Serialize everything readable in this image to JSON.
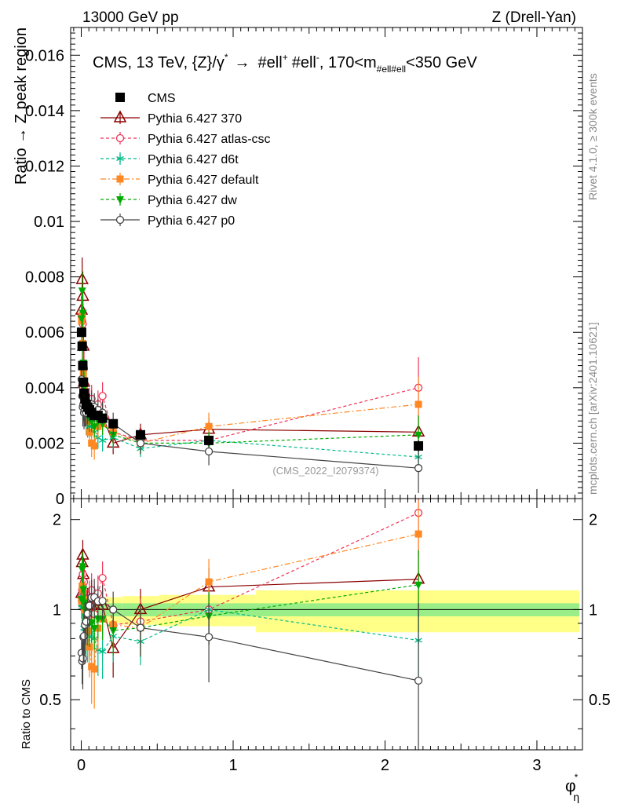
{
  "header": {
    "left_label": "13000 GeV pp",
    "right_label": "Z (Drell-Yan)"
  },
  "side_text": {
    "rivet": "Rivet 4.1.0, ≥ 300k events",
    "mcplots": "mcplots.cern.ch [arXiv:2401.10621]"
  },
  "chart_data": {
    "type": "scatter",
    "title": "CMS, 13 TeV, {Z}/γ* → #ell+ #ell-, 170<m#ell#ell<350 GeV",
    "title_parts": {
      "pre": "CMS, 13 TeV, {Z}/",
      "gamma": "γ",
      "star": "*",
      "arrow": "→",
      "ellp": "#ell",
      "plus": "+",
      "ellm": "#ell",
      "minus": "-",
      "mid": ", 170<m",
      "sub": "#ell#ell",
      "end": "<350 GeV"
    },
    "xlabel": "φ",
    "xlabel_sup": "*",
    "xlabel_sub": "η",
    "ylabel": "Ratio → Z peak region",
    "ratio_ylabel": "Ratio to CMS",
    "watermark": "(CMS_2022_I2079374)",
    "xlim": [
      -0.07,
      3.3
    ],
    "ylim": [
      0,
      0.017
    ],
    "ratio_ylim": [
      0.34,
      2.35
    ],
    "legend_position": "top-left",
    "x_ticks": [
      0,
      1,
      2,
      3
    ],
    "x_tick_labels": [
      "0",
      "1",
      "2",
      "3"
    ],
    "y_ticks": [
      0,
      0.002,
      0.004,
      0.006,
      0.008,
      0.01,
      0.012,
      0.014,
      0.016
    ],
    "y_tick_labels": [
      "0",
      "0.002",
      "0.004",
      "0.006",
      "0.008",
      "0.01",
      "0.012",
      "0.014",
      "0.016"
    ],
    "ratio_ticks": [
      0.5,
      1,
      2
    ],
    "ratio_tick_labels": [
      "0.5",
      "1",
      "2"
    ],
    "x": [
      0.002,
      0.006,
      0.01,
      0.014,
      0.018,
      0.024,
      0.032,
      0.042,
      0.054,
      0.068,
      0.086,
      0.11,
      0.14,
      0.21,
      0.39,
      0.84,
      2.22
    ],
    "band": {
      "x_edges": [
        0.0,
        0.004,
        0.008,
        0.012,
        0.016,
        0.02,
        0.028,
        0.036,
        0.048,
        0.06,
        0.076,
        0.096,
        0.124,
        0.156,
        0.27,
        0.51,
        1.15,
        3.28
      ],
      "stat": [
        0.035,
        0.035,
        0.035,
        0.035,
        0.04,
        0.04,
        0.04,
        0.04,
        0.04,
        0.045,
        0.045,
        0.05,
        0.05,
        0.05,
        0.05,
        0.05,
        0.05
      ],
      "total": [
        0.09,
        0.09,
        0.09,
        0.09,
        0.09,
        0.09,
        0.09,
        0.09,
        0.09,
        0.09,
        0.09,
        0.09,
        0.09,
        0.1,
        0.11,
        0.12,
        0.16
      ]
    },
    "series": [
      {
        "name": "CMS",
        "style": "data",
        "color": "#000000",
        "marker": "square",
        "values": [
          0.006,
          0.0055,
          0.0048,
          0.0042,
          0.0038,
          0.0036,
          0.0034,
          0.0033,
          0.0032,
          0.0031,
          0.003,
          0.003,
          0.0029,
          0.0027,
          0.0023,
          0.0021,
          0.0019
        ],
        "errors": [
          0.0001,
          0.0001,
          0.0001,
          0.0001,
          0.0001,
          0.0001,
          0.0001,
          0.0001,
          0.0001,
          0.0001,
          0.0001,
          0.0001,
          0.0001,
          0.0001,
          0.0001,
          0.0001,
          0.0002
        ]
      },
      {
        "name": "Pythia 6.427 370",
        "style": "mc",
        "color": "#8b0000",
        "marker": "triangle-up",
        "dash": "",
        "values": [
          0.0068,
          0.0079,
          0.0073,
          0.0055,
          0.0042,
          0.0038,
          0.0035,
          0.0034,
          0.0033,
          0.0032,
          0.0031,
          0.0031,
          0.003,
          0.002,
          0.0023,
          0.0025,
          0.0024
        ],
        "errors": [
          0.0005,
          0.0008,
          0.0009,
          0.0007,
          0.0006,
          0.0006,
          0.0006,
          0.0005,
          0.0005,
          0.0005,
          0.0005,
          0.0004,
          0.0004,
          0.0004,
          0.0004,
          0.0004,
          0.0006
        ]
      },
      {
        "name": "Pythia 6.427 atlas-csc",
        "style": "mc",
        "color": "#ee3355",
        "marker": "circle-open",
        "dash": "4,3",
        "values": [
          0.0066,
          0.0064,
          0.0063,
          0.0048,
          0.0047,
          0.0039,
          0.0033,
          0.0031,
          0.0035,
          0.0036,
          0.0029,
          0.0034,
          0.0037,
          0.0024,
          0.0021,
          0.0021,
          0.004
        ],
        "errors": [
          0.0006,
          0.0008,
          0.0008,
          0.0007,
          0.0007,
          0.0006,
          0.0005,
          0.0005,
          0.0005,
          0.0005,
          0.0005,
          0.0005,
          0.0005,
          0.0004,
          0.0004,
          0.0005,
          0.0011
        ]
      },
      {
        "name": "Pythia 6.427 d6t",
        "style": "mc",
        "color": "#00bb88",
        "marker": "asterisk",
        "dash": "4,3",
        "values": [
          0.0061,
          0.0056,
          0.0054,
          0.0043,
          0.0033,
          0.0031,
          0.0028,
          0.0027,
          0.0026,
          0.0026,
          0.0024,
          0.0022,
          0.0021,
          0.0022,
          0.0018,
          0.0021,
          0.0015
        ],
        "errors": [
          0.0005,
          0.0007,
          0.0007,
          0.0006,
          0.0005,
          0.0005,
          0.0005,
          0.0005,
          0.0004,
          0.0004,
          0.0004,
          0.0004,
          0.0004,
          0.0004,
          0.0003,
          0.0004,
          0.0004
        ]
      },
      {
        "name": "Pythia 6.427 default",
        "style": "mc",
        "color": "#ff8822",
        "marker": "square-filled",
        "dash": "7,3,2,3",
        "values": [
          0.0064,
          0.0066,
          0.0056,
          0.0045,
          0.0041,
          0.0036,
          0.0031,
          0.0028,
          0.0024,
          0.002,
          0.0019,
          0.0026,
          0.0027,
          0.0024,
          0.002,
          0.0026,
          0.0034
        ],
        "errors": [
          0.0005,
          0.0007,
          0.0008,
          0.0007,
          0.0006,
          0.0006,
          0.0005,
          0.0005,
          0.0005,
          0.0005,
          0.0005,
          0.0004,
          0.0004,
          0.0004,
          0.0004,
          0.0005,
          0.001
        ]
      },
      {
        "name": "Pythia 6.427 dw",
        "style": "mc",
        "color": "#00aa00",
        "marker": "triangle-down",
        "dash": "4,3",
        "values": [
          0.0065,
          0.0075,
          0.0067,
          0.0049,
          0.004,
          0.0036,
          0.0032,
          0.003,
          0.0029,
          0.0028,
          0.0026,
          0.0028,
          0.0027,
          0.0023,
          0.002,
          0.002,
          0.0023
        ],
        "errors": [
          0.0005,
          0.0007,
          0.0008,
          0.0007,
          0.0006,
          0.0006,
          0.0005,
          0.0005,
          0.0005,
          0.0004,
          0.0004,
          0.0004,
          0.0004,
          0.0004,
          0.0004,
          0.0004,
          0.0007
        ]
      },
      {
        "name": "Pythia 6.427 p0",
        "style": "mc",
        "color": "#444444",
        "marker": "circle-open",
        "dash": "",
        "values": [
          0.0043,
          0.0037,
          0.0033,
          0.0034,
          0.0031,
          0.0032,
          0.0031,
          0.0032,
          0.0033,
          0.0034,
          0.0033,
          0.0032,
          0.0031,
          0.0027,
          0.002,
          0.0017,
          0.0011
        ],
        "errors": [
          0.0005,
          0.0006,
          0.0007,
          0.0006,
          0.0006,
          0.0006,
          0.0005,
          0.0005,
          0.0005,
          0.0005,
          0.0005,
          0.0004,
          0.0004,
          0.0004,
          0.0004,
          0.0005,
          0.0009
        ]
      }
    ]
  }
}
